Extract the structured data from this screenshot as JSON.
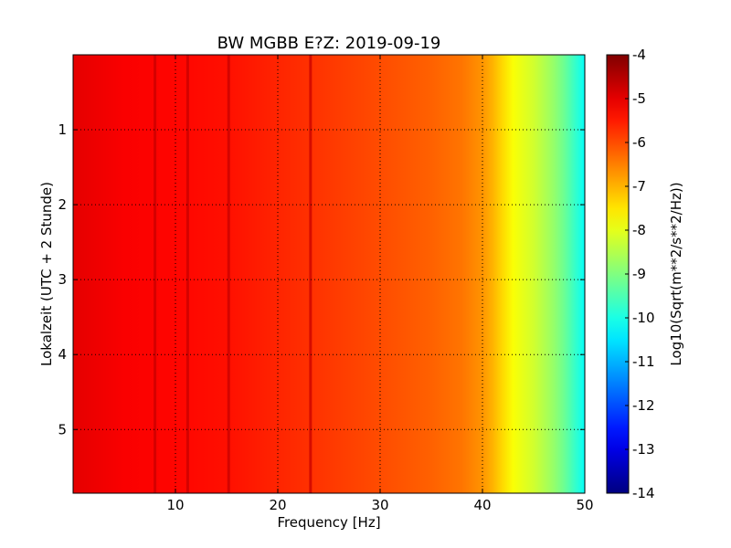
{
  "chart_data": {
    "type": "heatmap",
    "title": "BW MGBB E?Z: 2019-09-19",
    "xlabel": "Frequency [Hz]",
    "ylabel": "Lokalzeit (UTC + 2 Stunde)",
    "xlim": [
      0,
      50
    ],
    "ylim": [
      5.85,
      0
    ],
    "y_inverted": true,
    "x_ticks": [
      10,
      20,
      30,
      40,
      50
    ],
    "y_ticks": [
      1,
      2,
      3,
      4,
      5
    ],
    "grid": true,
    "grid_style": "dotted",
    "colormap": "jet",
    "colorbar": {
      "label": "Log10(Sqrt(m**2/s**2/Hz))",
      "range": [
        -14,
        -4
      ],
      "ticks": [
        -4,
        -5,
        -6,
        -7,
        -8,
        -9,
        -10,
        -11,
        -12,
        -13,
        -14
      ]
    },
    "spectrum_profile": {
      "frequency_hz": [
        0,
        5,
        10,
        15,
        20,
        25,
        30,
        35,
        38,
        40,
        41,
        42,
        43,
        44,
        45,
        46,
        47,
        48,
        49,
        50
      ],
      "log10_psd": [
        -5.0,
        -5.2,
        -5.3,
        -5.4,
        -5.6,
        -5.8,
        -6.0,
        -6.2,
        -6.4,
        -6.7,
        -7.0,
        -7.4,
        -7.8,
        -8.0,
        -8.2,
        -8.5,
        -8.8,
        -9.2,
        -9.7,
        -10.2
      ]
    },
    "spectral_lines_hz": [
      8.0,
      11.2,
      15.2,
      23.2
    ],
    "line_level": -4.7
  }
}
